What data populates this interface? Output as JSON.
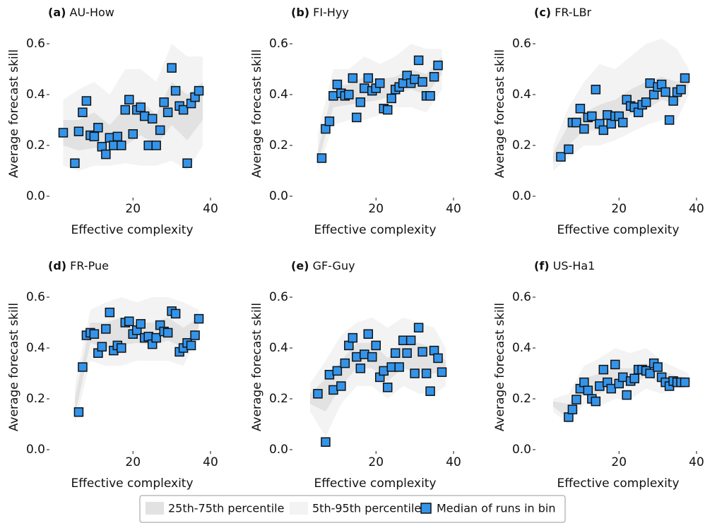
{
  "chart_data": [
    {
      "type": "scatter",
      "panel_label": "(a)",
      "title": "AU-How",
      "xlabel": "Effective complexity",
      "ylabel": "Average forecast skill",
      "x": [
        2,
        5,
        6,
        7,
        8,
        9,
        10,
        11,
        12,
        13,
        14,
        15,
        16,
        17,
        18,
        19,
        20,
        21,
        22,
        23,
        24,
        25,
        26,
        27,
        28,
        29,
        30,
        31,
        32,
        33,
        34,
        35,
        36,
        37
      ],
      "values": [
        0.25,
        0.13,
        0.255,
        0.33,
        0.375,
        0.24,
        0.235,
        0.27,
        0.195,
        0.165,
        0.23,
        0.2,
        0.235,
        0.2,
        0.34,
        0.38,
        0.245,
        0.34,
        0.35,
        0.315,
        0.2,
        0.305,
        0.2,
        0.26,
        0.37,
        0.33,
        0.505,
        0.415,
        0.355,
        0.34,
        0.13,
        0.365,
        0.39,
        0.415
      ],
      "band": {
        "x": [
          2,
          6,
          10,
          14,
          18,
          22,
          26,
          30,
          34,
          38
        ],
        "p5": [
          0.12,
          0.1,
          0.12,
          0.12,
          0.13,
          0.12,
          0.12,
          0.14,
          0.1,
          0.2
        ],
        "p25": [
          0.2,
          0.18,
          0.19,
          0.18,
          0.2,
          0.24,
          0.2,
          0.28,
          0.22,
          0.3
        ],
        "p75": [
          0.3,
          0.3,
          0.33,
          0.28,
          0.35,
          0.38,
          0.32,
          0.45,
          0.4,
          0.45
        ],
        "p95": [
          0.38,
          0.42,
          0.45,
          0.4,
          0.5,
          0.5,
          0.45,
          0.6,
          0.55,
          0.55
        ]
      },
      "xlim": [
        1,
        40
      ],
      "ylim": [
        0,
        0.65
      ],
      "xticks": [
        20,
        40
      ],
      "yticks": [
        {
          "value": 0,
          "label": "0.0"
        },
        {
          "value": 0.2,
          "label": "0.2"
        },
        {
          "value": 0.4,
          "label": "0.4"
        },
        {
          "value": 0.6,
          "label": "0.6"
        }
      ]
    },
    {
      "type": "scatter",
      "panel_label": "(b)",
      "title": "FI-Hyy",
      "xlabel": "Effective complexity",
      "ylabel": "Average forecast skill",
      "x": [
        6,
        7,
        8,
        9,
        10,
        11,
        12,
        13,
        14,
        15,
        16,
        17,
        18,
        19,
        20,
        21,
        22,
        23,
        24,
        25,
        26,
        27,
        28,
        29,
        30,
        31,
        32,
        33,
        34,
        35,
        36
      ],
      "values": [
        0.15,
        0.265,
        0.295,
        0.395,
        0.44,
        0.405,
        0.395,
        0.4,
        0.465,
        0.31,
        0.37,
        0.425,
        0.465,
        0.415,
        0.425,
        0.445,
        0.345,
        0.34,
        0.385,
        0.42,
        0.43,
        0.445,
        0.475,
        0.445,
        0.46,
        0.535,
        0.45,
        0.395,
        0.395,
        0.47,
        0.515
      ],
      "band": {
        "x": [
          5,
          9,
          13,
          17,
          21,
          25,
          29,
          33,
          37
        ],
        "p5": [
          0.1,
          0.28,
          0.3,
          0.3,
          0.32,
          0.35,
          0.35,
          0.33,
          0.42
        ],
        "p25": [
          0.13,
          0.35,
          0.36,
          0.37,
          0.38,
          0.4,
          0.42,
          0.4,
          0.48
        ],
        "p75": [
          0.18,
          0.43,
          0.44,
          0.47,
          0.46,
          0.47,
          0.5,
          0.48,
          0.55
        ],
        "p95": [
          0.25,
          0.5,
          0.5,
          0.55,
          0.52,
          0.55,
          0.6,
          0.58,
          0.58
        ]
      },
      "xlim": [
        1,
        40
      ],
      "ylim": [
        0,
        0.65
      ],
      "xticks": [
        20,
        40
      ],
      "yticks": [
        {
          "value": 0,
          "label": "0.0"
        },
        {
          "value": 0.2,
          "label": "0.2"
        },
        {
          "value": 0.4,
          "label": "0.4"
        },
        {
          "value": 0.6,
          "label": "0.6"
        }
      ]
    },
    {
      "type": "scatter",
      "panel_label": "(c)",
      "title": "FR-LBr",
      "xlabel": "Effective complexity",
      "ylabel": "Average forecast skill",
      "x": [
        5,
        7,
        8,
        9,
        10,
        11,
        12,
        13,
        14,
        15,
        16,
        17,
        18,
        19,
        20,
        21,
        22,
        23,
        24,
        25,
        26,
        27,
        28,
        29,
        30,
        31,
        32,
        33,
        34,
        35,
        36,
        37
      ],
      "values": [
        0.155,
        0.185,
        0.29,
        0.29,
        0.345,
        0.265,
        0.31,
        0.315,
        0.42,
        0.285,
        0.26,
        0.32,
        0.285,
        0.315,
        0.315,
        0.29,
        0.38,
        0.355,
        0.35,
        0.33,
        0.36,
        0.37,
        0.445,
        0.4,
        0.43,
        0.44,
        0.41,
        0.3,
        0.375,
        0.41,
        0.42,
        0.465
      ],
      "band": {
        "x": [
          3,
          7,
          11,
          15,
          19,
          23,
          27,
          31,
          35,
          38
        ],
        "p5": [
          0.1,
          0.15,
          0.2,
          0.2,
          0.22,
          0.25,
          0.28,
          0.3,
          0.3,
          0.4
        ],
        "p25": [
          0.13,
          0.2,
          0.26,
          0.26,
          0.27,
          0.32,
          0.34,
          0.38,
          0.36,
          0.44
        ],
        "p75": [
          0.17,
          0.28,
          0.33,
          0.36,
          0.38,
          0.42,
          0.45,
          0.47,
          0.45,
          0.48
        ],
        "p95": [
          0.2,
          0.35,
          0.45,
          0.52,
          0.5,
          0.55,
          0.6,
          0.62,
          0.58,
          0.5
        ]
      },
      "xlim": [
        1,
        40
      ],
      "ylim": [
        0,
        0.65
      ],
      "xticks": [
        20,
        40
      ],
      "yticks": [
        {
          "value": 0,
          "label": "0.0"
        },
        {
          "value": 0.2,
          "label": "0.2"
        },
        {
          "value": 0.4,
          "label": "0.4"
        },
        {
          "value": 0.6,
          "label": "0.6"
        }
      ]
    },
    {
      "type": "scatter",
      "panel_label": "(d)",
      "title": "FR-Pue",
      "xlabel": "Effective complexity",
      "ylabel": "Average forecast skill",
      "x": [
        6,
        7,
        8,
        9,
        10,
        11,
        12,
        13,
        14,
        15,
        16,
        17,
        18,
        19,
        20,
        21,
        22,
        23,
        24,
        25,
        26,
        27,
        28,
        29,
        30,
        31,
        32,
        33,
        34,
        35,
        36,
        37
      ],
      "values": [
        0.148,
        0.325,
        0.45,
        0.46,
        0.455,
        0.38,
        0.405,
        0.475,
        0.54,
        0.39,
        0.41,
        0.4,
        0.5,
        0.505,
        0.455,
        0.47,
        0.495,
        0.44,
        0.445,
        0.415,
        0.44,
        0.49,
        0.465,
        0.46,
        0.545,
        0.535,
        0.385,
        0.4,
        0.42,
        0.41,
        0.45,
        0.515
      ],
      "band": {
        "x": [
          5,
          9,
          13,
          17,
          21,
          25,
          29,
          33,
          37
        ],
        "p5": [
          0.1,
          0.35,
          0.33,
          0.33,
          0.35,
          0.35,
          0.35,
          0.33,
          0.45
        ],
        "p25": [
          0.13,
          0.42,
          0.4,
          0.41,
          0.42,
          0.41,
          0.43,
          0.4,
          0.48
        ],
        "p75": [
          0.2,
          0.5,
          0.5,
          0.52,
          0.5,
          0.5,
          0.52,
          0.48,
          0.52
        ],
        "p95": [
          0.25,
          0.55,
          0.58,
          0.6,
          0.58,
          0.6,
          0.6,
          0.58,
          0.55
        ]
      },
      "xlim": [
        1,
        40
      ],
      "ylim": [
        0,
        0.65
      ],
      "xticks": [
        20,
        40
      ],
      "yticks": [
        {
          "value": 0,
          "label": "0.0"
        },
        {
          "value": 0.2,
          "label": "0.2"
        },
        {
          "value": 0.4,
          "label": "0.4"
        },
        {
          "value": 0.6,
          "label": "0.6"
        }
      ]
    },
    {
      "type": "scatter",
      "panel_label": "(e)",
      "title": "GF-Guy",
      "xlabel": "Effective complexity",
      "ylabel": "Average forecast skill",
      "x": [
        5,
        7,
        8,
        9,
        10,
        11,
        12,
        13,
        14,
        15,
        16,
        17,
        18,
        19,
        20,
        21,
        22,
        23,
        24,
        25,
        26,
        27,
        28,
        29,
        30,
        31,
        32,
        33,
        34,
        35,
        36,
        37
      ],
      "values": [
        0.22,
        0.03,
        0.295,
        0.235,
        0.31,
        0.25,
        0.34,
        0.41,
        0.44,
        0.365,
        0.32,
        0.375,
        0.455,
        0.365,
        0.41,
        0.285,
        0.31,
        0.245,
        0.325,
        0.38,
        0.325,
        0.43,
        0.38,
        0.43,
        0.3,
        0.48,
        0.385,
        0.3,
        0.23,
        0.39,
        0.36,
        0.305
      ],
      "band": {
        "x": [
          3,
          7,
          11,
          15,
          19,
          23,
          27,
          31,
          35,
          38
        ],
        "p5": [
          0.15,
          0.05,
          0.18,
          0.25,
          0.25,
          0.2,
          0.25,
          0.22,
          0.22,
          0.25
        ],
        "p25": [
          0.18,
          0.15,
          0.25,
          0.32,
          0.32,
          0.27,
          0.32,
          0.3,
          0.3,
          0.3
        ],
        "p75": [
          0.22,
          0.28,
          0.35,
          0.42,
          0.42,
          0.36,
          0.42,
          0.42,
          0.4,
          0.35
        ],
        "p95": [
          0.26,
          0.35,
          0.45,
          0.5,
          0.52,
          0.48,
          0.52,
          0.5,
          0.48,
          0.4
        ]
      },
      "xlim": [
        1,
        40
      ],
      "ylim": [
        0,
        0.65
      ],
      "xticks": [
        20,
        40
      ],
      "yticks": [
        {
          "value": 0,
          "label": "0.0"
        },
        {
          "value": 0.2,
          "label": "0.2"
        },
        {
          "value": 0.4,
          "label": "0.4"
        },
        {
          "value": 0.6,
          "label": "0.6"
        }
      ]
    },
    {
      "type": "scatter",
      "panel_label": "(f)",
      "title": "US-Ha1",
      "xlabel": "Effective complexity",
      "ylabel": "Average forecast skill",
      "x": [
        7,
        8,
        9,
        10,
        11,
        12,
        13,
        14,
        15,
        16,
        17,
        18,
        19,
        20,
        21,
        22,
        23,
        24,
        25,
        26,
        27,
        28,
        29,
        30,
        31,
        32,
        33,
        34,
        35,
        36,
        37
      ],
      "values": [
        0.128,
        0.158,
        0.197,
        0.24,
        0.265,
        0.233,
        0.2,
        0.19,
        0.25,
        0.315,
        0.265,
        0.24,
        0.335,
        0.26,
        0.285,
        0.215,
        0.27,
        0.28,
        0.315,
        0.315,
        0.31,
        0.3,
        0.34,
        0.325,
        0.285,
        0.265,
        0.25,
        0.27,
        0.265,
        0.265,
        0.265
      ],
      "band": {
        "x": [
          3,
          7,
          11,
          15,
          19,
          23,
          27,
          31,
          35,
          38
        ],
        "p5": [
          0.15,
          0.1,
          0.18,
          0.17,
          0.2,
          0.2,
          0.24,
          0.22,
          0.24,
          0.25
        ],
        "p25": [
          0.17,
          0.12,
          0.22,
          0.22,
          0.25,
          0.25,
          0.29,
          0.26,
          0.26,
          0.26
        ],
        "p75": [
          0.19,
          0.18,
          0.28,
          0.3,
          0.32,
          0.32,
          0.34,
          0.31,
          0.29,
          0.28
        ],
        "p95": [
          0.2,
          0.22,
          0.33,
          0.36,
          0.4,
          0.38,
          0.4,
          0.35,
          0.32,
          0.3
        ]
      },
      "xlim": [
        1,
        40
      ],
      "ylim": [
        0,
        0.65
      ],
      "xticks": [
        20,
        40
      ],
      "yticks": [
        {
          "value": 0,
          "label": "0.0"
        },
        {
          "value": 0.2,
          "label": "0.2"
        },
        {
          "value": 0.4,
          "label": "0.4"
        },
        {
          "value": 0.6,
          "label": "0.6"
        }
      ]
    }
  ],
  "legend": [
    {
      "name": "25th-75th percentile",
      "color": "#e2e2e2"
    },
    {
      "name": "5th-95th percentile",
      "color": "#f3f3f3"
    },
    {
      "name": "Median of runs in bin",
      "color": "#3494ea"
    }
  ]
}
